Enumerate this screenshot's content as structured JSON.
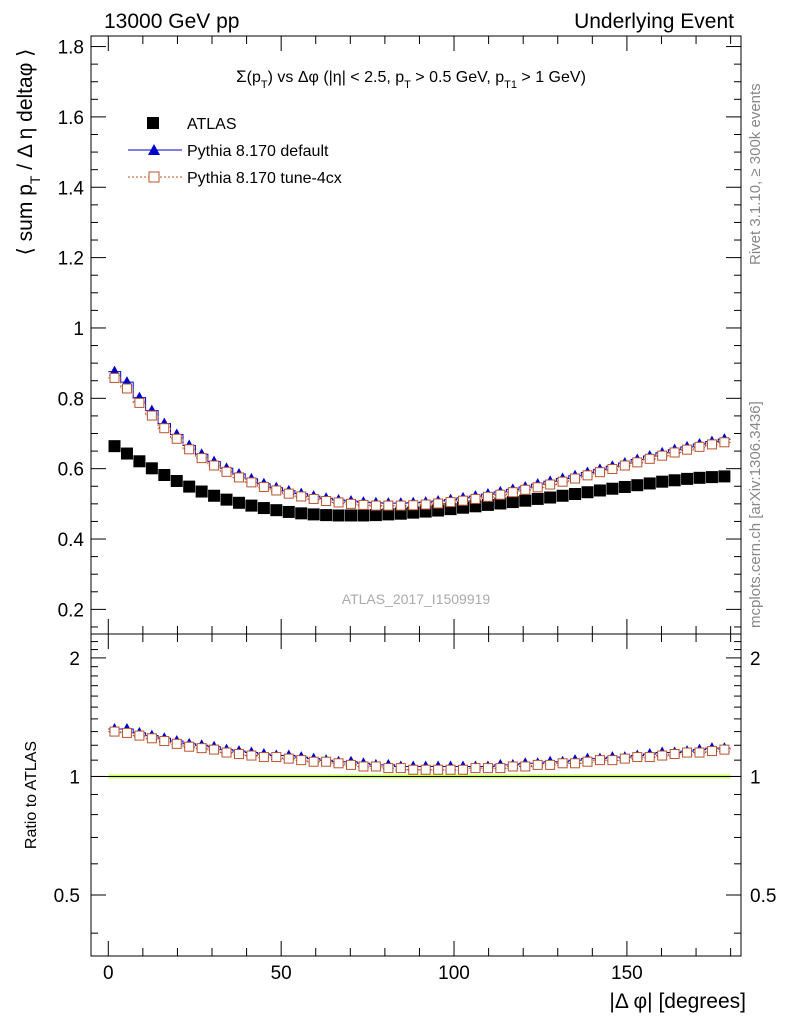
{
  "header": {
    "left": "13000 GeV pp",
    "right": "Underlying Event"
  },
  "side_labels": {
    "rivet": "Rivet 3.1.10, ≥ 300k events",
    "mcplots": "mcplots.cern.ch [arXiv:1306.3436]"
  },
  "chart_data": [
    {
      "type": "scatter",
      "title": "Σ(p_T) vs Δφ (|η| < 2.5, p_T > 0.5 GeV, p_T1 > 1 GeV)",
      "watermark": "ATLAS_2017_I1509919",
      "ylabel": "⟨ sum p_T / Δη deltaφ ⟩",
      "xlim": [
        -5,
        183
      ],
      "ylim": [
        0.13,
        1.83
      ],
      "y_ticks": [
        0.2,
        0.4,
        0.6,
        0.8,
        1,
        1.2,
        1.4,
        1.6,
        1.8
      ],
      "legend_position": "top-left",
      "x": [
        1.8,
        5.4,
        9.0,
        12.6,
        16.2,
        19.8,
        23.4,
        27.0,
        30.6,
        34.2,
        37.8,
        41.4,
        45.0,
        48.6,
        52.2,
        55.8,
        59.4,
        63.0,
        66.6,
        70.2,
        73.8,
        77.4,
        81.0,
        84.6,
        88.2,
        91.8,
        95.4,
        99.0,
        102.6,
        106.2,
        109.8,
        113.4,
        117.0,
        120.6,
        124.2,
        127.8,
        131.4,
        135.0,
        138.6,
        142.2,
        145.8,
        149.4,
        153.0,
        156.6,
        160.2,
        163.8,
        167.4,
        171.0,
        174.6,
        178.2
      ],
      "series": [
        {
          "name": "ATLAS",
          "marker": "filled-square",
          "color": "#000000",
          "values": [
            0.664,
            0.643,
            0.621,
            0.601,
            0.582,
            0.565,
            0.549,
            0.535,
            0.523,
            0.512,
            0.503,
            0.495,
            0.488,
            0.482,
            0.477,
            0.473,
            0.47,
            0.468,
            0.467,
            0.467,
            0.467,
            0.468,
            0.47,
            0.472,
            0.475,
            0.478,
            0.481,
            0.485,
            0.489,
            0.493,
            0.497,
            0.501,
            0.505,
            0.509,
            0.514,
            0.518,
            0.523,
            0.528,
            0.533,
            0.538,
            0.543,
            0.548,
            0.553,
            0.558,
            0.563,
            0.567,
            0.571,
            0.574,
            0.576,
            0.578
          ]
        },
        {
          "name": "Pythia 8.170 default",
          "marker": "filled-triangle",
          "color": "#0000cc",
          "values": [
            0.876,
            0.846,
            0.802,
            0.765,
            0.728,
            0.697,
            0.666,
            0.641,
            0.62,
            0.601,
            0.585,
            0.571,
            0.557,
            0.546,
            0.537,
            0.529,
            0.522,
            0.516,
            0.511,
            0.508,
            0.505,
            0.503,
            0.502,
            0.502,
            0.503,
            0.505,
            0.508,
            0.512,
            0.517,
            0.522,
            0.528,
            0.534,
            0.541,
            0.548,
            0.556,
            0.564,
            0.572,
            0.58,
            0.589,
            0.598,
            0.607,
            0.616,
            0.626,
            0.636,
            0.645,
            0.654,
            0.662,
            0.67,
            0.677,
            0.684
          ]
        },
        {
          "name": "Pythia 8.170 tune-4cx",
          "marker": "open-square",
          "color": "#b8542d",
          "values": [
            0.858,
            0.828,
            0.787,
            0.751,
            0.715,
            0.685,
            0.655,
            0.63,
            0.609,
            0.591,
            0.575,
            0.561,
            0.548,
            0.538,
            0.529,
            0.521,
            0.514,
            0.508,
            0.504,
            0.5,
            0.497,
            0.495,
            0.495,
            0.495,
            0.496,
            0.498,
            0.501,
            0.505,
            0.509,
            0.514,
            0.52,
            0.526,
            0.533,
            0.54,
            0.547,
            0.555,
            0.563,
            0.572,
            0.581,
            0.59,
            0.599,
            0.609,
            0.618,
            0.628,
            0.637,
            0.646,
            0.654,
            0.662,
            0.669,
            0.675
          ]
        }
      ]
    },
    {
      "type": "scatter",
      "ylabel": "Ratio to ATLAS",
      "xlabel": "|Δ φ| [degrees]",
      "xlim": [
        -5,
        183
      ],
      "x_ticks": [
        0,
        50,
        100,
        150
      ],
      "ylim": [
        0.35,
        2.3
      ],
      "y_scale": "log",
      "y_ticks": [
        0.5,
        1,
        2
      ],
      "reference_line": 1,
      "reference_band_color": "#ccff66",
      "x": [
        1.8,
        5.4,
        9.0,
        12.6,
        16.2,
        19.8,
        23.4,
        27.0,
        30.6,
        34.2,
        37.8,
        41.4,
        45.0,
        48.6,
        52.2,
        55.8,
        59.4,
        63.0,
        66.6,
        70.2,
        73.8,
        77.4,
        81.0,
        84.6,
        88.2,
        91.8,
        95.4,
        99.0,
        102.6,
        106.2,
        109.8,
        113.4,
        117.0,
        120.6,
        124.2,
        127.8,
        131.4,
        135.0,
        138.6,
        142.2,
        145.8,
        149.4,
        153.0,
        156.6,
        160.2,
        163.8,
        167.4,
        171.0,
        174.6,
        178.2
      ],
      "series": [
        {
          "name": "Pythia 8.170 default",
          "marker": "filled-triangle",
          "color": "#0000cc",
          "values": [
            1.32,
            1.32,
            1.29,
            1.27,
            1.25,
            1.23,
            1.21,
            1.2,
            1.19,
            1.17,
            1.16,
            1.15,
            1.14,
            1.13,
            1.13,
            1.12,
            1.11,
            1.1,
            1.09,
            1.09,
            1.08,
            1.07,
            1.07,
            1.06,
            1.06,
            1.06,
            1.06,
            1.06,
            1.06,
            1.06,
            1.06,
            1.07,
            1.07,
            1.08,
            1.08,
            1.09,
            1.09,
            1.1,
            1.11,
            1.11,
            1.12,
            1.12,
            1.13,
            1.14,
            1.15,
            1.15,
            1.16,
            1.17,
            1.18,
            1.18
          ]
        },
        {
          "name": "Pythia 8.170 tune-4cx",
          "marker": "open-square",
          "color": "#b8542d",
          "values": [
            1.3,
            1.29,
            1.27,
            1.25,
            1.23,
            1.21,
            1.19,
            1.18,
            1.17,
            1.15,
            1.14,
            1.13,
            1.12,
            1.12,
            1.11,
            1.1,
            1.09,
            1.09,
            1.08,
            1.07,
            1.06,
            1.06,
            1.05,
            1.05,
            1.04,
            1.04,
            1.04,
            1.04,
            1.04,
            1.05,
            1.05,
            1.05,
            1.06,
            1.06,
            1.07,
            1.07,
            1.08,
            1.08,
            1.09,
            1.1,
            1.1,
            1.11,
            1.12,
            1.12,
            1.13,
            1.14,
            1.15,
            1.15,
            1.16,
            1.17
          ]
        }
      ]
    }
  ]
}
